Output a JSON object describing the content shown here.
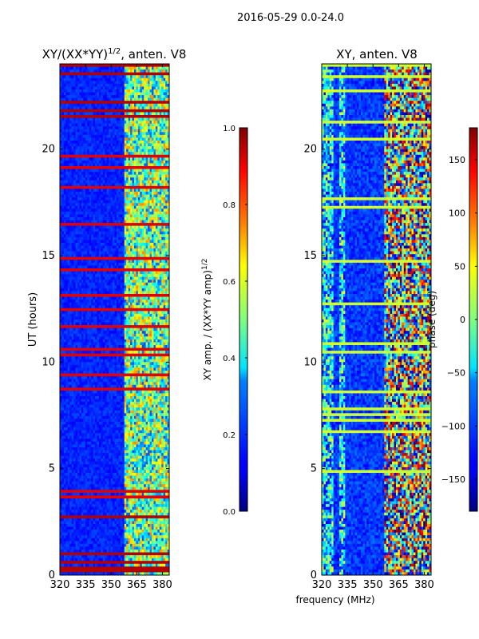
{
  "figure": {
    "suptitle": "2016-05-29 0.0-24.0",
    "xlabel": "frequency (MHz)"
  },
  "chart_data": [
    {
      "type": "heatmap",
      "title": "XY/(XX*YY)",
      "title_sup": "1/2",
      "title_suffix": ", anten. V8",
      "xlabel": "",
      "ylabel": "UT (hours)",
      "xlim": [
        320,
        384
      ],
      "ylim": [
        0,
        24
      ],
      "xticks": [
        {
          "value": 320,
          "label": "320"
        },
        {
          "value": 335,
          "label": "335"
        },
        {
          "value": 350,
          "label": "350"
        },
        {
          "value": 365,
          "label": "365"
        },
        {
          "value": 380,
          "label": "380"
        }
      ],
      "yticks": [
        {
          "value": 0,
          "label": "0"
        },
        {
          "value": 5,
          "label": "5"
        },
        {
          "value": 10,
          "label": "10"
        },
        {
          "value": 15,
          "label": "15"
        },
        {
          "value": 20,
          "label": "20"
        }
      ],
      "colorbar": {
        "label": "XY amp. / (XX*YY amp)",
        "label_sup": "1/2",
        "vmin": 0.0,
        "vmax": 1.0,
        "colormap": "jet",
        "ticks": [
          {
            "value": 0.0,
            "label": "0.0"
          },
          {
            "value": 0.2,
            "label": "0.2"
          },
          {
            "value": 0.4,
            "label": "0.4"
          },
          {
            "value": 0.6,
            "label": "0.6"
          },
          {
            "value": 0.8,
            "label": "0.8"
          },
          {
            "value": 1.0,
            "label": "1.0"
          }
        ]
      }
    },
    {
      "type": "heatmap",
      "title": "XY, anten. V8",
      "title_sup": "",
      "title_suffix": "",
      "xlabel": "frequency (MHz)",
      "ylabel": "",
      "xlim": [
        320,
        384
      ],
      "ylim": [
        0,
        24
      ],
      "xticks": [
        {
          "value": 320,
          "label": "320"
        },
        {
          "value": 335,
          "label": "335"
        },
        {
          "value": 350,
          "label": "350"
        },
        {
          "value": 365,
          "label": "365"
        },
        {
          "value": 380,
          "label": "380"
        }
      ],
      "yticks": [
        {
          "value": 0,
          "label": "0"
        },
        {
          "value": 5,
          "label": "5"
        },
        {
          "value": 10,
          "label": "10"
        },
        {
          "value": 15,
          "label": "15"
        },
        {
          "value": 20,
          "label": "20"
        }
      ],
      "colorbar": {
        "label": "phase (deg)",
        "label_sup": "",
        "vmin": -180,
        "vmax": 180,
        "colormap": "jet",
        "ticks": [
          {
            "value": -150,
            "label": "−150"
          },
          {
            "value": -100,
            "label": "−100"
          },
          {
            "value": -50,
            "label": "−50"
          },
          {
            "value": 0,
            "label": "0"
          },
          {
            "value": 50,
            "label": "50"
          },
          {
            "value": 100,
            "label": "100"
          },
          {
            "value": 150,
            "label": "150"
          }
        ]
      }
    }
  ]
}
